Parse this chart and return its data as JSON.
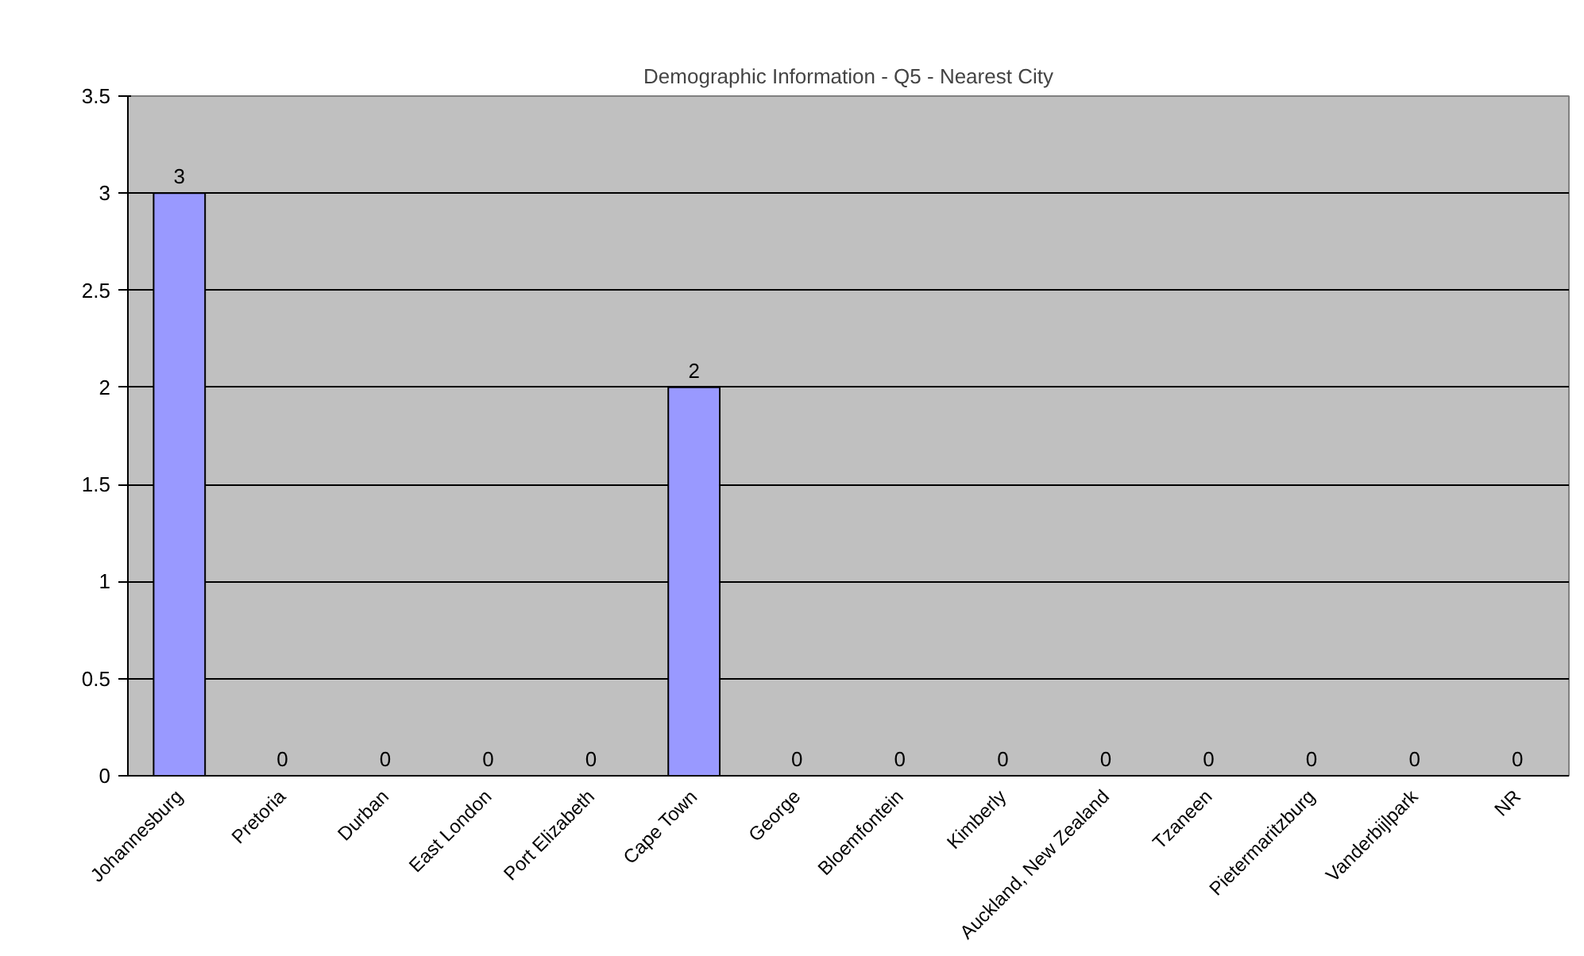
{
  "chart_data": {
    "type": "bar",
    "title": "Demographic Information - Q5 - Nearest City",
    "categories": [
      "Johannesburg",
      "Pretoria",
      "Durban",
      "East London",
      "Port Elizabeth",
      "Cape Town",
      "George",
      "Bloemfontein",
      "Kimberly",
      "Auckland, New Zealand",
      "Tzaneen",
      "Pietermaritzburg",
      "Vanderbijlpark",
      "NR"
    ],
    "values": [
      3,
      0,
      0,
      0,
      0,
      2,
      0,
      0,
      0,
      0,
      0,
      0,
      0,
      0
    ],
    "color": "#9999ff",
    "ylim": [
      0,
      3.5
    ],
    "yticks": [
      0,
      0.5,
      1,
      1.5,
      2,
      2.5,
      3,
      3.5
    ],
    "grid": "y",
    "data_labels": true
  }
}
